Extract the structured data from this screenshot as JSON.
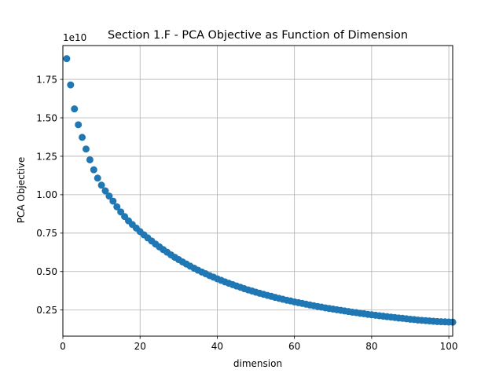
{
  "chart_data": {
    "type": "scatter",
    "title": "Section 1.F - PCA Objective as Function of Dimension",
    "xlabel": "dimension",
    "ylabel": "PCA Objective",
    "offset_label": "1e10",
    "xlim": [
      0,
      101
    ],
    "ylim": [
      0.08,
      1.97
    ],
    "xticks": [
      0,
      20,
      40,
      60,
      80,
      100
    ],
    "yticks": [
      0.25,
      0.5,
      0.75,
      1.0,
      1.25,
      1.5,
      1.75
    ],
    "ytick_labels": [
      "0.25",
      "0.50",
      "0.75",
      "1.00",
      "1.25",
      "1.50",
      "1.75"
    ],
    "grid": true,
    "marker_color": "#1f77b4",
    "series": [
      {
        "x": [
          1,
          2,
          3,
          4,
          5,
          6,
          7,
          8,
          9,
          10,
          11,
          12,
          13,
          14,
          15,
          16,
          17,
          18,
          19,
          20,
          21,
          22,
          23,
          24,
          25,
          26,
          27,
          28,
          29,
          30,
          31,
          32,
          33,
          34,
          35,
          36,
          37,
          38,
          39,
          40,
          41,
          42,
          43,
          44,
          45,
          46,
          47,
          48,
          49,
          50,
          51,
          52,
          53,
          54,
          55,
          56,
          57,
          58,
          59,
          60,
          61,
          62,
          63,
          64,
          65,
          66,
          67,
          68,
          69,
          70,
          71,
          72,
          73,
          74,
          75,
          76,
          77,
          78,
          79,
          80,
          81,
          82,
          83,
          84,
          85,
          86,
          87,
          88,
          89,
          90,
          91,
          92,
          93,
          94,
          95,
          96,
          97,
          98,
          99,
          100,
          101
        ],
        "y": [
          1.885,
          1.714,
          1.558,
          1.455,
          1.373,
          1.297,
          1.227,
          1.162,
          1.108,
          1.062,
          1.025,
          0.991,
          0.958,
          0.921,
          0.888,
          0.858,
          0.83,
          0.806,
          0.783,
          0.76,
          0.739,
          0.719,
          0.699,
          0.679,
          0.661,
          0.643,
          0.626,
          0.609,
          0.593,
          0.578,
          0.563,
          0.549,
          0.535,
          0.522,
          0.509,
          0.497,
          0.486,
          0.474,
          0.464,
          0.453,
          0.443,
          0.433,
          0.424,
          0.415,
          0.406,
          0.398,
          0.389,
          0.381,
          0.374,
          0.366,
          0.359,
          0.352,
          0.345,
          0.339,
          0.332,
          0.326,
          0.32,
          0.314,
          0.309,
          0.303,
          0.298,
          0.293,
          0.288,
          0.283,
          0.278,
          0.273,
          0.269,
          0.264,
          0.26,
          0.256,
          0.252,
          0.248,
          0.244,
          0.24,
          0.236,
          0.233,
          0.229,
          0.226,
          0.222,
          0.219,
          0.216,
          0.213,
          0.21,
          0.207,
          0.204,
          0.201,
          0.198,
          0.196,
          0.193,
          0.19,
          0.188,
          0.185,
          0.183,
          0.181,
          0.179,
          0.177,
          0.175,
          0.174,
          0.173,
          0.172,
          0.171
        ]
      }
    ]
  }
}
